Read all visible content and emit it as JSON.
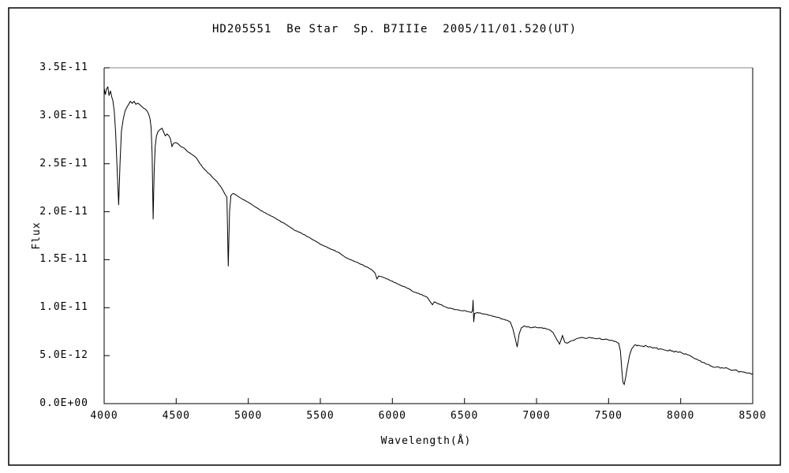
{
  "title": "HD205551  Be Star  Sp. B7IIIe  2005/11/01.520(UT)",
  "colors": {
    "background": "#ffffff",
    "outer_border": "#000000",
    "axis": "#000000",
    "plot_frame_top": "#8a8a8a",
    "spectrum_line": "#000000",
    "text": "#000000"
  },
  "axes": {
    "y_label": "Flux",
    "x_label": "Wavelength(Å)",
    "x_tick_labels": [
      "4000",
      "4500",
      "5000",
      "5500",
      "6000",
      "6500",
      "7000",
      "7500",
      "8000",
      "8500"
    ],
    "y_tick_labels": [
      "0.0E+00",
      "5.0E-12",
      "1.0E-11",
      "1.5E-11",
      "2.0E-11",
      "2.5E-11",
      "3.0E-11",
      "3.5E-11"
    ]
  },
  "chart_data": {
    "type": "line",
    "title": "HD205551  Be Star  Sp. B7IIIe  2005/11/01.520(UT)",
    "xlabel": "Wavelength(Å)",
    "ylabel": "Flux",
    "xlim": [
      4000,
      8500
    ],
    "ylim": [
      0,
      3.5e-11
    ],
    "x_ticks": [
      4000,
      4500,
      5000,
      5500,
      6000,
      6500,
      7000,
      7500,
      8000,
      8500
    ],
    "y_ticks_1e11": [
      0,
      0.5,
      1.0,
      1.5,
      2.0,
      2.5,
      3.0,
      3.5
    ],
    "grid": false,
    "legend": false,
    "series": [
      {
        "name": "stellar spectrum",
        "line_color": "#000000",
        "points_lambda_angstrom_flux_1e11": [
          [
            4000,
            3.29
          ],
          [
            4008,
            3.22
          ],
          [
            4016,
            3.28
          ],
          [
            4026,
            3.3
          ],
          [
            4034,
            3.21
          ],
          [
            4044,
            3.26
          ],
          [
            4052,
            3.2
          ],
          [
            4060,
            3.16
          ],
          [
            4070,
            3.05
          ],
          [
            4080,
            2.82
          ],
          [
            4090,
            2.45
          ],
          [
            4101,
            2.07
          ],
          [
            4110,
            2.5
          ],
          [
            4120,
            2.84
          ],
          [
            4132,
            2.96
          ],
          [
            4145,
            3.05
          ],
          [
            4158,
            3.09
          ],
          [
            4170,
            3.12
          ],
          [
            4182,
            3.15
          ],
          [
            4195,
            3.13
          ],
          [
            4208,
            3.15
          ],
          [
            4220,
            3.12
          ],
          [
            4232,
            3.13
          ],
          [
            4245,
            3.12
          ],
          [
            4258,
            3.1
          ],
          [
            4272,
            3.08
          ],
          [
            4285,
            3.07
          ],
          [
            4298,
            3.05
          ],
          [
            4308,
            3.02
          ],
          [
            4318,
            2.97
          ],
          [
            4326,
            2.88
          ],
          [
            4333,
            2.6
          ],
          [
            4340,
            1.92
          ],
          [
            4347,
            2.42
          ],
          [
            4354,
            2.68
          ],
          [
            4363,
            2.79
          ],
          [
            4375,
            2.84
          ],
          [
            4390,
            2.86
          ],
          [
            4402,
            2.87
          ],
          [
            4413,
            2.83
          ],
          [
            4424,
            2.79
          ],
          [
            4437,
            2.81
          ],
          [
            4450,
            2.79
          ],
          [
            4460,
            2.76
          ],
          [
            4471,
            2.68
          ],
          [
            4480,
            2.71
          ],
          [
            4495,
            2.72
          ],
          [
            4510,
            2.71
          ],
          [
            4525,
            2.69
          ],
          [
            4545,
            2.67
          ],
          [
            4565,
            2.65
          ],
          [
            4585,
            2.62
          ],
          [
            4605,
            2.6
          ],
          [
            4625,
            2.58
          ],
          [
            4645,
            2.55
          ],
          [
            4665,
            2.5
          ],
          [
            4685,
            2.46
          ],
          [
            4705,
            2.43
          ],
          [
            4725,
            2.4
          ],
          [
            4745,
            2.37
          ],
          [
            4765,
            2.34
          ],
          [
            4785,
            2.31
          ],
          [
            4805,
            2.27
          ],
          [
            4825,
            2.22
          ],
          [
            4840,
            2.18
          ],
          [
            4852,
            2.15
          ],
          [
            4861,
            1.43
          ],
          [
            4870,
            2.0
          ],
          [
            4880,
            2.17
          ],
          [
            4895,
            2.19
          ],
          [
            4910,
            2.18
          ],
          [
            4930,
            2.16
          ],
          [
            4950,
            2.14
          ],
          [
            4975,
            2.12
          ],
          [
            5000,
            2.1
          ],
          [
            5030,
            2.07
          ],
          [
            5060,
            2.04
          ],
          [
            5090,
            2.01
          ],
          [
            5115,
            1.99
          ],
          [
            5140,
            1.97
          ],
          [
            5170,
            1.95
          ],
          [
            5200,
            1.92
          ],
          [
            5235,
            1.89
          ],
          [
            5270,
            1.86
          ],
          [
            5300,
            1.83
          ],
          [
            5330,
            1.8
          ],
          [
            5365,
            1.78
          ],
          [
            5400,
            1.75
          ],
          [
            5435,
            1.72
          ],
          [
            5470,
            1.69
          ],
          [
            5500,
            1.66
          ],
          [
            5530,
            1.64
          ],
          [
            5560,
            1.62
          ],
          [
            5590,
            1.6
          ],
          [
            5620,
            1.58
          ],
          [
            5650,
            1.55
          ],
          [
            5680,
            1.52
          ],
          [
            5710,
            1.5
          ],
          [
            5740,
            1.48
          ],
          [
            5770,
            1.46
          ],
          [
            5800,
            1.44
          ],
          [
            5830,
            1.42
          ],
          [
            5860,
            1.39
          ],
          [
            5880,
            1.36
          ],
          [
            5893,
            1.3
          ],
          [
            5905,
            1.33
          ],
          [
            5930,
            1.32
          ],
          [
            5960,
            1.3
          ],
          [
            5990,
            1.28
          ],
          [
            6020,
            1.26
          ],
          [
            6050,
            1.24
          ],
          [
            6080,
            1.22
          ],
          [
            6110,
            1.2
          ],
          [
            6140,
            1.17
          ],
          [
            6175,
            1.15
          ],
          [
            6210,
            1.13
          ],
          [
            6240,
            1.11
          ],
          [
            6268,
            1.05
          ],
          [
            6278,
            1.03
          ],
          [
            6290,
            1.06
          ],
          [
            6320,
            1.04
          ],
          [
            6350,
            1.02
          ],
          [
            6380,
            1.0
          ],
          [
            6410,
            0.99
          ],
          [
            6440,
            0.98
          ],
          [
            6470,
            0.97
          ],
          [
            6500,
            0.97
          ],
          [
            6525,
            0.96
          ],
          [
            6548,
            0.95
          ],
          [
            6556,
            0.97
          ],
          [
            6560,
            1.08
          ],
          [
            6564,
            0.85
          ],
          [
            6570,
            0.94
          ],
          [
            6590,
            0.95
          ],
          [
            6615,
            0.94
          ],
          [
            6645,
            0.93
          ],
          [
            6675,
            0.92
          ],
          [
            6705,
            0.91
          ],
          [
            6735,
            0.9
          ],
          [
            6765,
            0.88
          ],
          [
            6795,
            0.87
          ],
          [
            6818,
            0.85
          ],
          [
            6836,
            0.78
          ],
          [
            6852,
            0.68
          ],
          [
            6866,
            0.59
          ],
          [
            6880,
            0.73
          ],
          [
            6895,
            0.79
          ],
          [
            6915,
            0.81
          ],
          [
            6940,
            0.8
          ],
          [
            6965,
            0.79
          ],
          [
            6990,
            0.8
          ],
          [
            7015,
            0.79
          ],
          [
            7040,
            0.79
          ],
          [
            7065,
            0.78
          ],
          [
            7090,
            0.77
          ],
          [
            7115,
            0.74
          ],
          [
            7140,
            0.67
          ],
          [
            7160,
            0.62
          ],
          [
            7180,
            0.71
          ],
          [
            7196,
            0.64
          ],
          [
            7215,
            0.63
          ],
          [
            7235,
            0.65
          ],
          [
            7260,
            0.66
          ],
          [
            7285,
            0.68
          ],
          [
            7310,
            0.69
          ],
          [
            7340,
            0.68
          ],
          [
            7370,
            0.69
          ],
          [
            7400,
            0.68
          ],
          [
            7430,
            0.68
          ],
          [
            7460,
            0.67
          ],
          [
            7490,
            0.67
          ],
          [
            7520,
            0.66
          ],
          [
            7545,
            0.65
          ],
          [
            7570,
            0.63
          ],
          [
            7582,
            0.55
          ],
          [
            7592,
            0.35
          ],
          [
            7600,
            0.22
          ],
          [
            7608,
            0.2
          ],
          [
            7618,
            0.27
          ],
          [
            7630,
            0.38
          ],
          [
            7645,
            0.5
          ],
          [
            7660,
            0.57
          ],
          [
            7680,
            0.61
          ],
          [
            7705,
            0.61
          ],
          [
            7735,
            0.6
          ],
          [
            7765,
            0.6
          ],
          [
            7795,
            0.59
          ],
          [
            7825,
            0.58
          ],
          [
            7855,
            0.57
          ],
          [
            7885,
            0.56
          ],
          [
            7915,
            0.55
          ],
          [
            7945,
            0.55
          ],
          [
            7975,
            0.54
          ],
          [
            8005,
            0.53
          ],
          [
            8035,
            0.52
          ],
          [
            8065,
            0.5
          ],
          [
            8095,
            0.47
          ],
          [
            8125,
            0.45
          ],
          [
            8155,
            0.43
          ],
          [
            8185,
            0.41
          ],
          [
            8215,
            0.39
          ],
          [
            8245,
            0.38
          ],
          [
            8275,
            0.37
          ],
          [
            8305,
            0.37
          ],
          [
            8335,
            0.36
          ],
          [
            8365,
            0.35
          ],
          [
            8395,
            0.34
          ],
          [
            8425,
            0.33
          ],
          [
            8455,
            0.32
          ],
          [
            8480,
            0.32
          ],
          [
            8500,
            0.31
          ]
        ]
      }
    ]
  }
}
